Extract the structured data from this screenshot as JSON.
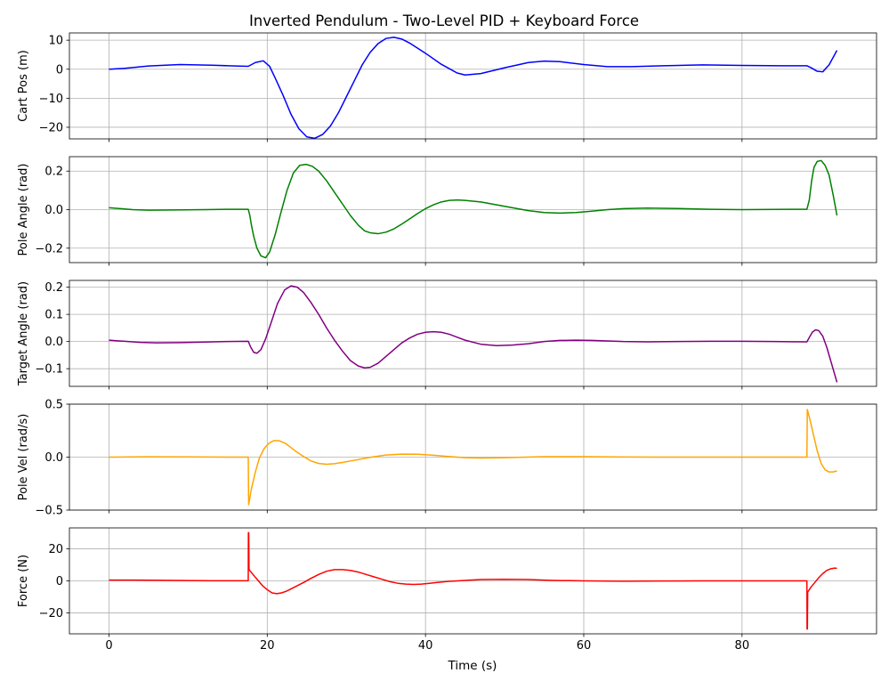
{
  "title": "Inverted Pendulum - Two-Level PID + Keyboard Force",
  "xlabel": "Time (s)",
  "chart_data": [
    {
      "type": "line",
      "ylabel": "Cart Pos (m)",
      "color": "#0000ff",
      "xlim": [
        -5,
        97
      ],
      "ylim": [
        -24,
        12.5
      ],
      "xticks": [
        0,
        20,
        40,
        60,
        80
      ],
      "yticks": [
        10,
        0,
        -10,
        -20
      ],
      "grid": true,
      "series": [
        {
          "x": [
            0,
            2,
            5,
            9,
            13,
            16,
            17.6,
            18.5,
            19.5,
            20.3,
            21,
            22,
            23,
            24,
            25,
            26,
            27,
            28,
            29,
            30,
            31,
            32,
            33,
            34,
            35,
            36,
            37,
            38,
            40,
            42,
            44,
            45,
            47,
            50,
            53,
            55,
            57,
            60,
            63,
            66,
            70,
            75,
            80,
            85,
            88.2,
            88.8,
            89.5,
            90.2,
            91,
            92
          ],
          "y": [
            0,
            0.3,
            1.1,
            1.6,
            1.4,
            1.1,
            1.0,
            2.3,
            2.9,
            1.0,
            -3.0,
            -9.0,
            -15.5,
            -20.5,
            -23.3,
            -23.8,
            -22.5,
            -19.5,
            -15.0,
            -9.5,
            -4.0,
            1.5,
            5.8,
            8.8,
            10.6,
            11.0,
            10.4,
            9.0,
            5.5,
            1.7,
            -1.3,
            -2.0,
            -1.5,
            0.5,
            2.3,
            2.8,
            2.6,
            1.6,
            0.9,
            0.9,
            1.2,
            1.5,
            1.3,
            1.2,
            1.2,
            0.4,
            -0.7,
            -0.9,
            1.5,
            6.5
          ]
        }
      ]
    },
    {
      "type": "line",
      "ylabel": "Pole Angle (rad)",
      "color": "#008000",
      "xlim": [
        -5,
        97
      ],
      "ylim": [
        -0.275,
        0.275
      ],
      "xticks": [
        0,
        20,
        40,
        60,
        80
      ],
      "yticks": [
        0.2,
        0.0,
        -0.2
      ],
      "tick_labels": [
        "0.2",
        "0.0",
        "−0.2"
      ],
      "grid": true,
      "series": [
        {
          "x": [
            0,
            1.5,
            3,
            5,
            8,
            12,
            15,
            17.6,
            17.8,
            18,
            18.3,
            18.7,
            19.2,
            19.8,
            20.3,
            21,
            21.7,
            22.5,
            23.3,
            24.1,
            24.9,
            25.7,
            26.5,
            27.5,
            28.5,
            29.5,
            30.5,
            31.5,
            32.3,
            33,
            34,
            35,
            36,
            37,
            38,
            39,
            40,
            41,
            42,
            43,
            44,
            45,
            47,
            49,
            51,
            53,
            55,
            57,
            59,
            61,
            63,
            65,
            68,
            72,
            76,
            80,
            84,
            88.2,
            88.5,
            88.8,
            89.1,
            89.5,
            90,
            90.5,
            91,
            91.5,
            92
          ],
          "y": [
            0.01,
            0.005,
            0,
            -0.003,
            -0.002,
            0,
            0.002,
            0.002,
            -0.03,
            -0.08,
            -0.14,
            -0.2,
            -0.24,
            -0.25,
            -0.22,
            -0.13,
            -0.02,
            0.1,
            0.19,
            0.23,
            0.235,
            0.225,
            0.2,
            0.15,
            0.09,
            0.03,
            -0.03,
            -0.08,
            -0.11,
            -0.12,
            -0.125,
            -0.117,
            -0.1,
            -0.075,
            -0.048,
            -0.02,
            0.005,
            0.025,
            0.04,
            0.048,
            0.05,
            0.048,
            0.04,
            0.025,
            0.01,
            -0.005,
            -0.015,
            -0.018,
            -0.015,
            -0.008,
            0,
            0.005,
            0.008,
            0.006,
            0.002,
            0,
            0.001,
            0.002,
            0.05,
            0.15,
            0.22,
            0.25,
            0.255,
            0.23,
            0.18,
            0.08,
            -0.03
          ]
        }
      ]
    },
    {
      "type": "line",
      "ylabel": "Target Angle (rad)",
      "color": "#800080",
      "xlim": [
        -5,
        97
      ],
      "ylim": [
        -0.165,
        0.225
      ],
      "xticks": [
        0,
        20,
        40,
        60,
        80
      ],
      "yticks": [
        0.2,
        0.1,
        0.0,
        -0.1
      ],
      "tick_labels": [
        "0.2",
        "0.1",
        "0.0",
        "−0.1"
      ],
      "grid": true,
      "series": [
        {
          "x": [
            0,
            2,
            4,
            6,
            9,
            12,
            15,
            17.6,
            17.9,
            18.3,
            18.7,
            19.2,
            19.8,
            20.5,
            21.3,
            22.2,
            23,
            23.8,
            24.6,
            25.5,
            26.5,
            27.5,
            28.5,
            29.5,
            30.5,
            31.5,
            32.3,
            33,
            34,
            35,
            36,
            37,
            38,
            39,
            40,
            41,
            42,
            43,
            44,
            45,
            47,
            49,
            51,
            53,
            55,
            57,
            59,
            61,
            63,
            65,
            68,
            72,
            76,
            80,
            84,
            88.2,
            88.5,
            88.9,
            89.3,
            89.7,
            90.2,
            90.7,
            91.2,
            91.6,
            92
          ],
          "y": [
            0.005,
            0.001,
            -0.003,
            -0.005,
            -0.004,
            -0.002,
            0,
            0.001,
            -0.02,
            -0.04,
            -0.043,
            -0.03,
            0.01,
            0.07,
            0.14,
            0.19,
            0.205,
            0.2,
            0.18,
            0.145,
            0.1,
            0.05,
            0.005,
            -0.035,
            -0.07,
            -0.09,
            -0.097,
            -0.095,
            -0.08,
            -0.055,
            -0.03,
            -0.005,
            0.013,
            0.027,
            0.034,
            0.036,
            0.034,
            0.027,
            0.016,
            0.005,
            -0.01,
            -0.015,
            -0.013,
            -0.008,
            0,
            0.004,
            0.005,
            0.004,
            0.002,
            0,
            -0.001,
            0,
            0.001,
            0.001,
            0,
            -0.001,
            0.015,
            0.035,
            0.043,
            0.04,
            0.02,
            -0.02,
            -0.07,
            -0.11,
            -0.15
          ]
        }
      ]
    },
    {
      "type": "line",
      "ylabel": "Pole Vel (rad/s)",
      "color": "#ffa500",
      "xlim": [
        -5,
        97
      ],
      "ylim": [
        -0.5,
        0.5
      ],
      "xticks": [
        0,
        20,
        40,
        60,
        80
      ],
      "yticks": [
        0.5,
        0.0,
        -0.5
      ],
      "tick_labels": [
        "0.5",
        "0.0",
        "−0.5"
      ],
      "grid": true,
      "series": [
        {
          "x": [
            0,
            5,
            10,
            15,
            17.6,
            17.65,
            18,
            18.5,
            19,
            19.6,
            20.2,
            20.8,
            21.5,
            22.3,
            23,
            23.7,
            24.5,
            25.5,
            26.5,
            27.5,
            28.5,
            29.5,
            31,
            33,
            35,
            37,
            39,
            41,
            43,
            45,
            47,
            50,
            55,
            60,
            65,
            70,
            75,
            80,
            85,
            88.2,
            88.25,
            88.6,
            89,
            89.5,
            90,
            90.5,
            91,
            91.5,
            92
          ],
          "y": [
            0,
            0.003,
            0.002,
            0,
            0,
            -0.45,
            -0.3,
            -0.14,
            -0.01,
            0.08,
            0.13,
            0.155,
            0.155,
            0.13,
            0.09,
            0.05,
            0.01,
            -0.035,
            -0.06,
            -0.067,
            -0.062,
            -0.05,
            -0.03,
            -0.002,
            0.02,
            0.028,
            0.027,
            0.018,
            0.005,
            -0.005,
            -0.008,
            -0.005,
            0.004,
            0.004,
            0.001,
            0,
            0,
            0,
            0,
            0,
            0.45,
            0.35,
            0.22,
            0.06,
            -0.06,
            -0.12,
            -0.14,
            -0.14,
            -0.13
          ]
        }
      ]
    },
    {
      "type": "line",
      "ylabel": "Force (N)",
      "color": "#ff0000",
      "xlim": [
        -5,
        97
      ],
      "ylim": [
        -33,
        33
      ],
      "xticks": [
        0,
        20,
        40,
        60,
        80
      ],
      "xtick_labels": [
        "0",
        "20",
        "40",
        "60",
        "80"
      ],
      "yticks": [
        20,
        0,
        -20
      ],
      "tick_labels": [
        "20",
        "0",
        "−20"
      ],
      "grid": true,
      "series": [
        {
          "x": [
            0,
            3,
            8,
            13,
            17.6,
            17.62,
            17.66,
            17.7,
            18.2,
            18.8,
            19.4,
            20,
            20.6,
            21.2,
            21.8,
            22.4,
            23,
            23.8,
            24.6,
            25.5,
            26.5,
            27.5,
            28.5,
            29.5,
            30.5,
            31.5,
            32.5,
            33.5,
            34.5,
            35.5,
            36.5,
            37.5,
            38.5,
            39.5,
            40.5,
            41.5,
            43,
            45,
            47,
            50,
            53,
            56,
            60,
            65,
            70,
            75,
            80,
            85,
            88.2,
            88.22,
            88.26,
            88.3,
            88.7,
            89.2,
            89.7,
            90.2,
            90.7,
            91.2,
            91.7,
            92
          ],
          "y": [
            0.5,
            0.5,
            0.3,
            0.1,
            0.1,
            30,
            30,
            7,
            4,
            0.5,
            -3,
            -5.5,
            -7.5,
            -8,
            -7.5,
            -6.5,
            -5,
            -3,
            -1,
            1.5,
            4,
            6,
            7,
            7,
            6.5,
            5.5,
            4,
            2.5,
            1,
            -0.5,
            -1.5,
            -2,
            -2.2,
            -2,
            -1.5,
            -1,
            -0.3,
            0.3,
            0.8,
            1,
            0.8,
            0.3,
            0,
            -0.2,
            -0.1,
            0,
            0,
            0,
            0,
            -30,
            -30,
            -7,
            -4,
            -1,
            2,
            4.5,
            6.5,
            7.5,
            8,
            7.8
          ]
        }
      ]
    }
  ]
}
